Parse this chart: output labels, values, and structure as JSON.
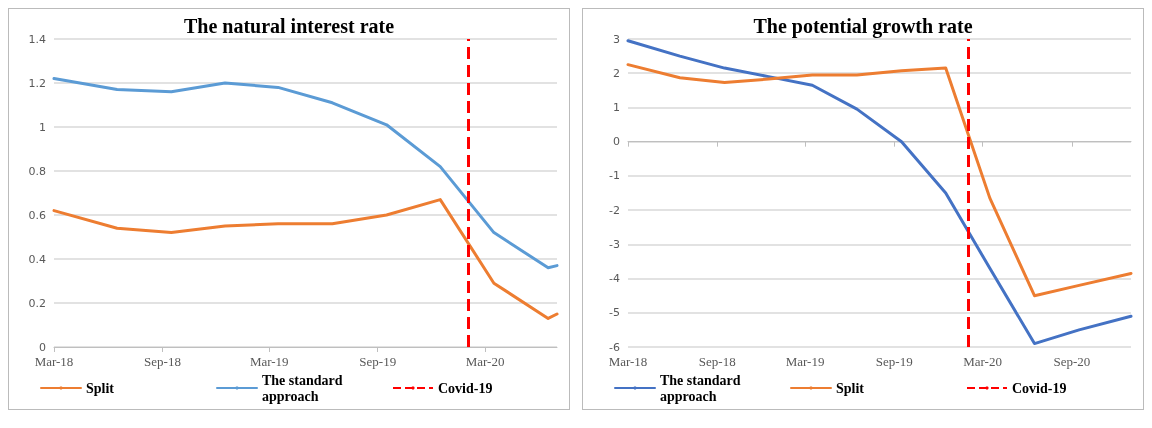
{
  "chart_data": [
    {
      "type": "line",
      "title": "The natural interest rate",
      "x": [
        "2018-03-01",
        "2018-06-16",
        "2018-09-16",
        "2018-12-16",
        "2019-03-16",
        "2019-06-16",
        "2019-09-16",
        "2019-12-16",
        "2020-03-16",
        "2020-06-16",
        "2020-07-01"
      ],
      "series": [
        {
          "name": "Split",
          "color": "#ed7d31",
          "values": [
            0.62,
            0.54,
            0.52,
            0.55,
            0.56,
            0.56,
            0.6,
            0.67,
            0.29,
            0.13,
            0.15
          ]
        },
        {
          "name": "The standard approach",
          "color": "#5b9bd5",
          "values": [
            1.22,
            1.17,
            1.16,
            1.2,
            1.18,
            1.11,
            1.01,
            0.82,
            0.52,
            0.36,
            0.37
          ]
        }
      ],
      "xlim": [
        "2018-03-01",
        "2020-07-01"
      ],
      "xticks": [
        {
          "value": "2018-03-01",
          "label": "Mar-18"
        },
        {
          "value": "2018-09-01",
          "label": "Sep-18"
        },
        {
          "value": "2019-03-01",
          "label": "Mar-19"
        },
        {
          "value": "2019-09-01",
          "label": "Sep-19"
        },
        {
          "value": "2020-03-01",
          "label": "Mar-20"
        }
      ],
      "ylim": [
        0,
        1.4
      ],
      "yticks": [
        0,
        0.2,
        0.4,
        0.6,
        0.8,
        1,
        1.2,
        1.4
      ],
      "ref_lines": [
        {
          "axis": "x",
          "value": "2020-02-01",
          "label": "Covid-19",
          "color": "#ff0000",
          "line_style": "dashed"
        }
      ],
      "grid": "y",
      "legend": "bottom",
      "marker": "none",
      "line_style": "solid"
    },
    {
      "type": "line",
      "title": "The potential growth rate",
      "x": [
        "2018-03-01",
        "2018-06-16",
        "2018-09-16",
        "2018-12-16",
        "2019-03-16",
        "2019-06-16",
        "2019-09-16",
        "2019-12-16",
        "2020-03-16",
        "2020-06-16",
        "2020-09-16",
        "2021-01-01"
      ],
      "series": [
        {
          "name": "The standard approach",
          "color": "#4472c4",
          "values": [
            2.95,
            2.5,
            2.15,
            1.9,
            1.65,
            0.95,
            0,
            -1.5,
            -3.7,
            -5.9,
            -5.5,
            -5.1
          ]
        },
        {
          "name": "Split",
          "color": "#ed7d31",
          "values": [
            2.25,
            1.87,
            1.73,
            1.83,
            1.95,
            1.95,
            2.07,
            2.15,
            -1.65,
            -4.5,
            -4.2,
            -3.85
          ]
        }
      ],
      "xlim": [
        "2018-03-01",
        "2021-01-01"
      ],
      "xticks": [
        {
          "value": "2018-03-01",
          "label": "Mar-18"
        },
        {
          "value": "2018-09-01",
          "label": "Sep-18"
        },
        {
          "value": "2019-03-01",
          "label": "Mar-19"
        },
        {
          "value": "2019-09-01",
          "label": "Sep-19"
        },
        {
          "value": "2020-03-01",
          "label": "Mar-20"
        },
        {
          "value": "2020-09-01",
          "label": "Sep-20"
        }
      ],
      "ylim": [
        -6,
        3
      ],
      "yticks": [
        -6,
        -5,
        -4,
        -3,
        -2,
        -1,
        0,
        1,
        2,
        3
      ],
      "ref_lines": [
        {
          "axis": "x",
          "value": "2020-02-01",
          "label": "Covid-19",
          "color": "#ff0000",
          "line_style": "dashed"
        }
      ],
      "grid": "y",
      "legend": "bottom",
      "marker": "none",
      "line_style": "solid"
    }
  ]
}
